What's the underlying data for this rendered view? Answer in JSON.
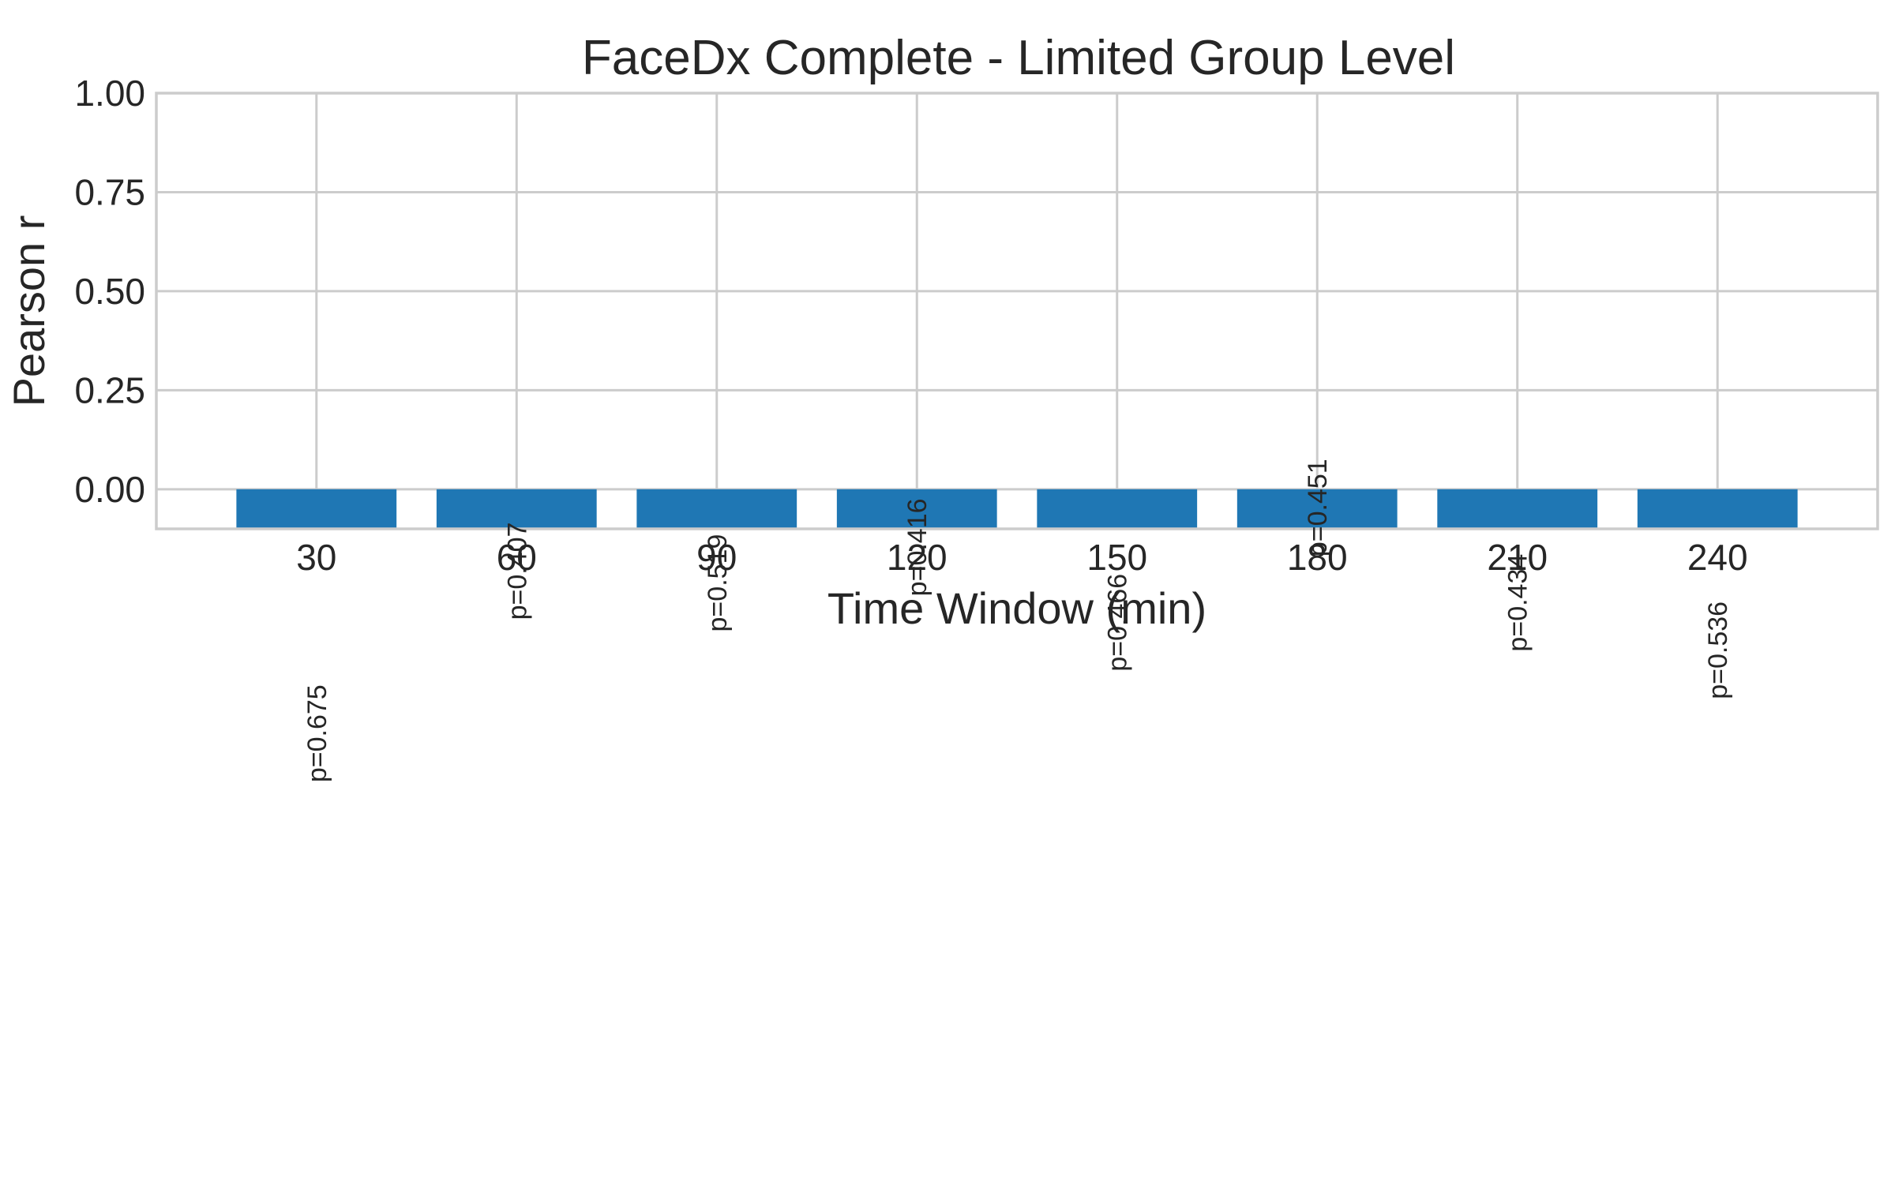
{
  "chart_data": {
    "type": "bar",
    "title": "FaceDx Complete - Limited Group Level",
    "xlabel": "Time Window (min)",
    "ylabel": "Pearson r",
    "categories": [
      "30",
      "60",
      "90",
      "120",
      "150",
      "180",
      "210",
      "240"
    ],
    "values": [
      -0.1,
      -0.1,
      -0.1,
      -0.1,
      -0.1,
      -0.1,
      -0.1,
      -0.1
    ],
    "annotations": [
      "p=0.675",
      "p=0.407",
      "p=0.519",
      "p=0.416",
      "p=0.466",
      "p=0.451",
      "p=0.434",
      "p=0.536"
    ],
    "annotation_offsets_r": [
      -0.74,
      -0.33,
      -0.36,
      -0.27,
      -0.46,
      -0.17,
      -0.41,
      -0.53
    ],
    "ylim": [
      -0.1,
      1.0
    ],
    "yticks": [
      "0.00",
      "0.25",
      "0.50",
      "0.75",
      "1.00"
    ],
    "grid": true,
    "bar_color": "#1f77b4"
  }
}
